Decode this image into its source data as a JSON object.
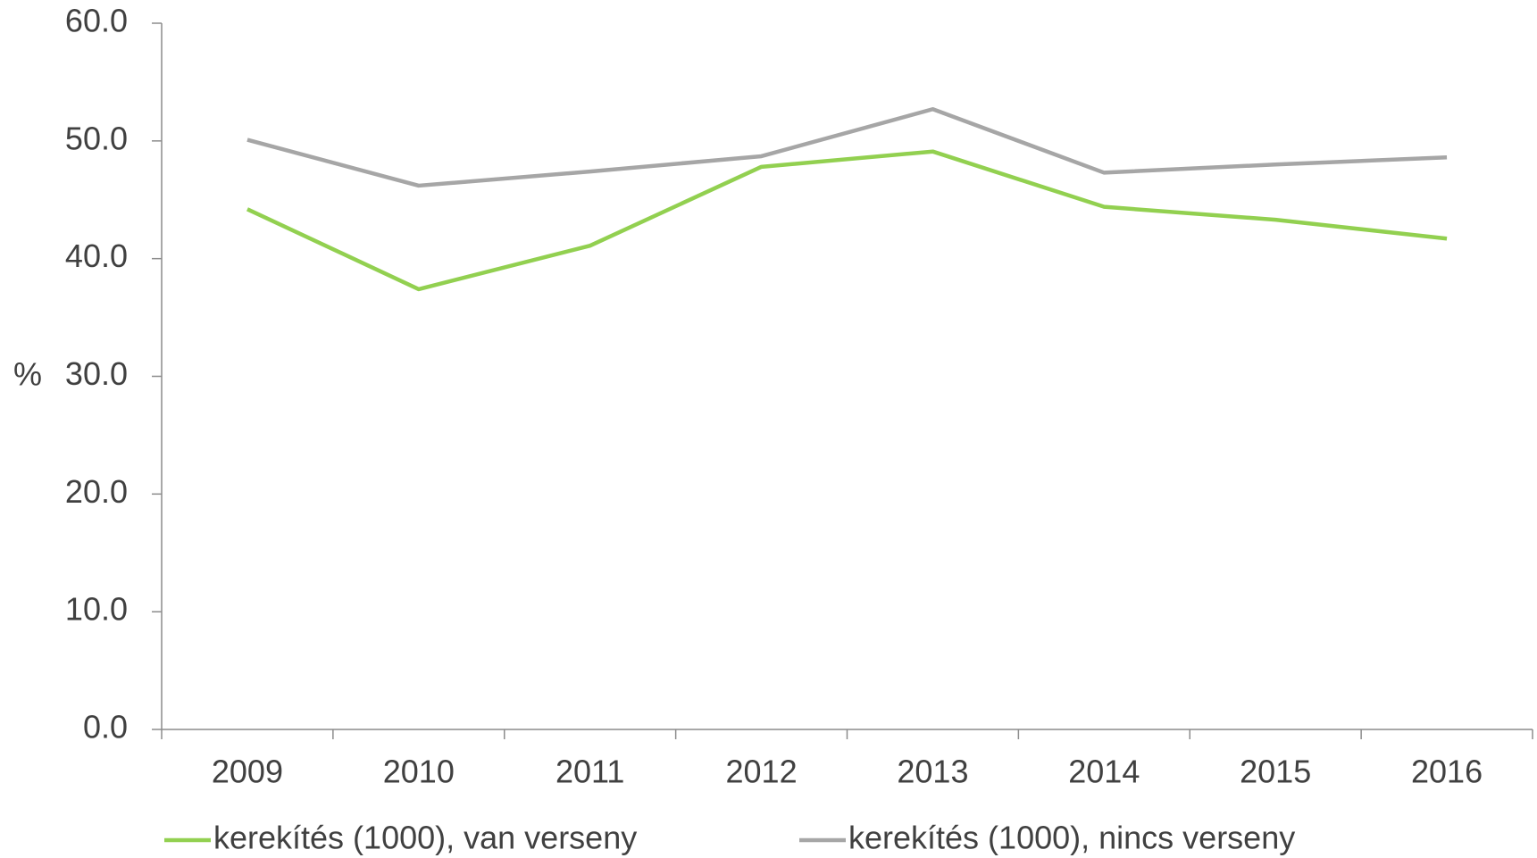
{
  "chart_data": {
    "type": "line",
    "y_label": "%",
    "categories": [
      "2009",
      "2010",
      "2011",
      "2012",
      "2013",
      "2014",
      "2015",
      "2016"
    ],
    "series": [
      {
        "name": "kerekítés (1000), van verseny",
        "color": "#92d050",
        "values": [
          44.2,
          37.4,
          41.1,
          47.8,
          49.1,
          44.4,
          43.3,
          41.7
        ]
      },
      {
        "name": "kerekítés (1000), nincs verseny",
        "color": "#a6a6a6",
        "values": [
          50.1,
          46.2,
          47.4,
          48.7,
          52.7,
          47.3,
          48.0,
          48.6
        ]
      }
    ],
    "ylim": [
      0,
      60
    ],
    "yticks": [
      {
        "value": 0,
        "label": "0.0"
      },
      {
        "value": 10,
        "label": "10.0"
      },
      {
        "value": 20,
        "label": "20.0"
      },
      {
        "value": 30,
        "label": "30.0"
      },
      {
        "value": 40,
        "label": "40.0"
      },
      {
        "value": 50,
        "label": "50.0"
      },
      {
        "value": 60,
        "label": "60.0"
      }
    ],
    "grid": false,
    "legend": "bottom"
  }
}
